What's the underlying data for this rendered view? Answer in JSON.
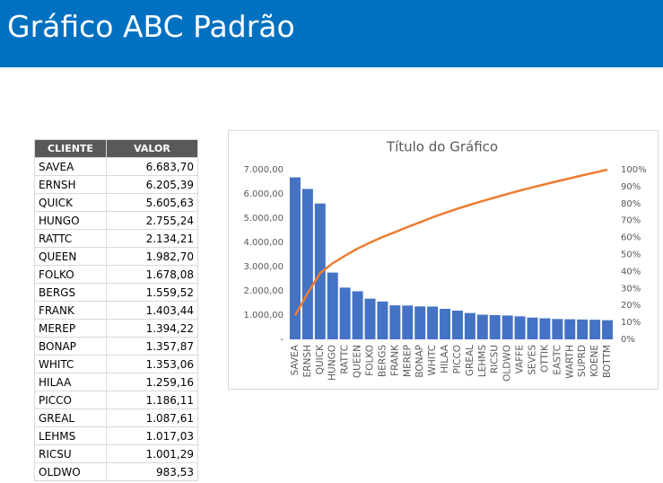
{
  "header": {
    "title": "Gráfico ABC Padrão"
  },
  "table": {
    "columns": [
      "CLIENTE",
      "VALOR"
    ],
    "rows": [
      [
        "SAVEA",
        "6.683,70"
      ],
      [
        "ERNSH",
        "6.205,39"
      ],
      [
        "QUICK",
        "5.605,63"
      ],
      [
        "HUNGO",
        "2.755,24"
      ],
      [
        "RATTC",
        "2.134,21"
      ],
      [
        "QUEEN",
        "1.982,70"
      ],
      [
        "FOLKO",
        "1.678,08"
      ],
      [
        "BERGS",
        "1.559,52"
      ],
      [
        "FRANK",
        "1.403,44"
      ],
      [
        "MEREP",
        "1.394,22"
      ],
      [
        "BONAP",
        "1.357,87"
      ],
      [
        "WHITC",
        "1.353,06"
      ],
      [
        "HILAA",
        "1.259,16"
      ],
      [
        "PICCO",
        "1.186,11"
      ],
      [
        "GREAL",
        "1.087,61"
      ],
      [
        "LEHMS",
        "1.017,03"
      ],
      [
        "RICSU",
        "1.001,29"
      ],
      [
        "OLDWO",
        "983,53"
      ]
    ]
  },
  "chart_data": {
    "type": "bar-line",
    "title": "Título do Gráfico",
    "categories": [
      "SAVEA",
      "ERNSH",
      "QUICK",
      "HUNGO",
      "RATTC",
      "QUEEN",
      "FOLKO",
      "BERGS",
      "FRANK",
      "MEREP",
      "BONAP",
      "WHITC",
      "HILAA",
      "PICCO",
      "GREAL",
      "LEHMS",
      "RICSU",
      "OLDWO",
      "VAFFE",
      "SEVES",
      "OTTIK",
      "EASTC",
      "WARTH",
      "SUPRD",
      "KOENE",
      "BOTTM"
    ],
    "series": [
      {
        "type": "bar",
        "color": "#4472c4",
        "values": [
          6683.7,
          6205.39,
          5605.63,
          2755.24,
          2134.21,
          1982.7,
          1678.08,
          1559.52,
          1403.44,
          1394.22,
          1357.87,
          1353.06,
          1259.16,
          1186.11,
          1087.61,
          1017.03,
          1001.29,
          983.53,
          950,
          900,
          870,
          840,
          830,
          820,
          810,
          790
        ]
      },
      {
        "type": "line",
        "axis": "y2",
        "color": "#ed7d31",
        "values": [
          14.1,
          27.2,
          39.0,
          44.8,
          49.3,
          53.5,
          57.0,
          60.3,
          63.2,
          66.2,
          69.0,
          71.9,
          74.5,
          77.0,
          79.3,
          81.5,
          83.6,
          85.7,
          87.7,
          89.6,
          91.4,
          93.2,
          94.9,
          96.7,
          98.3,
          100
        ]
      }
    ],
    "ylim": [
      0,
      7000
    ],
    "yticks": [
      {
        "value": 0,
        "label": "-"
      },
      {
        "value": 1000,
        "label": "1.000,00"
      },
      {
        "value": 2000,
        "label": "2.000,00"
      },
      {
        "value": 3000,
        "label": "3.000,00"
      },
      {
        "value": 4000,
        "label": "4.000,00"
      },
      {
        "value": 5000,
        "label": "5.000,00"
      },
      {
        "value": 6000,
        "label": "6.000,00"
      },
      {
        "value": 7000,
        "label": "7.000,00"
      }
    ],
    "y2lim": [
      0,
      100
    ],
    "y2ticks": [
      {
        "value": 0,
        "label": "0%"
      },
      {
        "value": 10,
        "label": "10%"
      },
      {
        "value": 20,
        "label": "20%"
      },
      {
        "value": 30,
        "label": "30%"
      },
      {
        "value": 40,
        "label": "40%"
      },
      {
        "value": 50,
        "label": "50%"
      },
      {
        "value": 60,
        "label": "60%"
      },
      {
        "value": 70,
        "label": "70%"
      },
      {
        "value": 80,
        "label": "80%"
      },
      {
        "value": 90,
        "label": "90%"
      },
      {
        "value": 100,
        "label": "100%"
      }
    ],
    "grid": false
  }
}
